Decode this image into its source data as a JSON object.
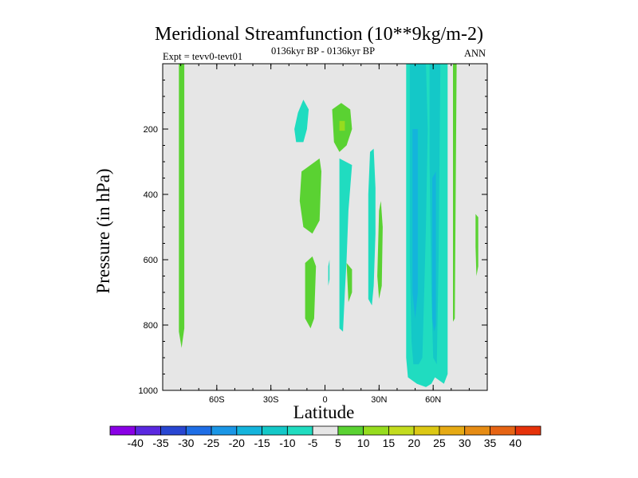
{
  "title": "Meridional Streamfunction (10**9kg/m-2)",
  "subtitle": "0136kyr BP - 0136kyr BP",
  "left_string": "Expt = tevv0-tevt01",
  "right_string": "ANN",
  "colors": {
    "background_field": "#e6e6e6",
    "palette": [
      "#8a00e6",
      "#5a28e0",
      "#2846d2",
      "#1e6ee6",
      "#1a96e6",
      "#14b4dc",
      "#14c8c8",
      "#20dcc0",
      "#e6e6e6",
      "#5ad232",
      "#96dc1e",
      "#c3dc1e",
      "#dcc814",
      "#e6aa14",
      "#e68c14",
      "#e66414",
      "#e6320a"
    ]
  },
  "chart_data": {
    "type": "heatmap",
    "title": "Meridional Streamfunction (10**9kg/m-2)",
    "xlabel": "Latitude",
    "ylabel": "Pressure (in hPa)",
    "xlim": [
      -90,
      90
    ],
    "ylim": [
      1000,
      0
    ],
    "x_ticks": [
      -60,
      -30,
      0,
      30,
      60
    ],
    "x_tick_labels": [
      "60S",
      "30S",
      "0",
      "30N",
      "60N"
    ],
    "y_ticks": [
      200,
      400,
      600,
      800,
      1000
    ],
    "y_tick_labels": [
      "200",
      "400",
      "600",
      "800",
      "1000"
    ],
    "colorbar": {
      "levels": [
        -40,
        -35,
        -30,
        -25,
        -20,
        -15,
        -10,
        -5,
        5,
        10,
        15,
        20,
        25,
        30,
        35,
        40
      ],
      "labels": [
        "-40",
        "-35",
        "-30",
        "-25",
        "-20",
        "-15",
        "-10",
        "-5",
        "5",
        "10",
        "15",
        "20",
        "25",
        "30",
        "35",
        "40"
      ]
    },
    "regions": [
      {
        "name": "southern-positive-band",
        "level": 5,
        "points": [
          [
            -81,
            0
          ],
          [
            -78,
            0
          ],
          [
            -78,
            810
          ],
          [
            -79.5,
            870
          ],
          [
            -81,
            820
          ]
        ]
      },
      {
        "name": "trop-s-upper",
        "level": -5,
        "points": [
          [
            -17,
            200
          ],
          [
            -15,
            150
          ],
          [
            -12,
            110
          ],
          [
            -9,
            140
          ],
          [
            -10,
            200
          ],
          [
            -12,
            240
          ],
          [
            -16,
            240
          ]
        ]
      },
      {
        "name": "trop-s-middle",
        "level": 5,
        "points": [
          [
            -13,
            330
          ],
          [
            -8,
            310
          ],
          [
            -3,
            290
          ],
          [
            -2,
            330
          ],
          [
            -3,
            480
          ],
          [
            -7,
            520
          ],
          [
            -12,
            500
          ],
          [
            -14,
            420
          ]
        ]
      },
      {
        "name": "trop-s-lower",
        "level": 5,
        "points": [
          [
            -11,
            610
          ],
          [
            -7,
            590
          ],
          [
            -5,
            620
          ],
          [
            -6,
            780
          ],
          [
            -8,
            810
          ],
          [
            -11,
            780
          ]
        ]
      },
      {
        "name": "trop-n-upper",
        "level": 5,
        "points": [
          [
            4,
            140
          ],
          [
            9,
            120
          ],
          [
            14,
            140
          ],
          [
            15,
            200
          ],
          [
            12,
            250
          ],
          [
            8,
            270
          ],
          [
            5,
            240
          ]
        ]
      },
      {
        "name": "trop-n-upper-core",
        "level": 10,
        "points": [
          [
            8,
            175
          ],
          [
            11,
            175
          ],
          [
            11,
            205
          ],
          [
            8,
            205
          ]
        ]
      },
      {
        "name": "trop-n-column",
        "level": -5,
        "points": [
          [
            8,
            290
          ],
          [
            15,
            310
          ],
          [
            13,
            450
          ],
          [
            12,
            600
          ],
          [
            11,
            700
          ],
          [
            10,
            820
          ],
          [
            8,
            810
          ],
          [
            8,
            620
          ],
          [
            8,
            460
          ]
        ]
      },
      {
        "name": "equator-sliver",
        "level": -5,
        "points": [
          [
            1.8,
            620
          ],
          [
            2.5,
            600
          ],
          [
            2.5,
            660
          ],
          [
            1.8,
            680
          ]
        ]
      },
      {
        "name": "trop-n-lower-green",
        "level": 5,
        "points": [
          [
            12,
            610
          ],
          [
            15,
            630
          ],
          [
            15,
            700
          ],
          [
            13,
            730
          ]
        ]
      },
      {
        "name": "n-subtrop-cyan",
        "level": -5,
        "points": [
          [
            25,
            270
          ],
          [
            27,
            260
          ],
          [
            28,
            380
          ],
          [
            28,
            520
          ],
          [
            27,
            680
          ],
          [
            26,
            740
          ],
          [
            24,
            720
          ],
          [
            24,
            560
          ],
          [
            24,
            400
          ]
        ]
      },
      {
        "name": "n-subtrop-green",
        "level": 5,
        "points": [
          [
            30,
            450
          ],
          [
            31,
            420
          ],
          [
            32,
            500
          ],
          [
            31.5,
            680
          ],
          [
            30,
            720
          ],
          [
            29,
            650
          ]
        ]
      },
      {
        "name": "n-midlat-outer",
        "level": -5,
        "points": [
          [
            45,
            0
          ],
          [
            68,
            0
          ],
          [
            68,
            950
          ],
          [
            66,
            980
          ],
          [
            61,
            960
          ],
          [
            59,
            980
          ],
          [
            56,
            990
          ],
          [
            51,
            980
          ],
          [
            46,
            960
          ],
          [
            45,
            900
          ]
        ]
      },
      {
        "name": "n-midlat-inner",
        "level": -10,
        "points": [
          [
            47,
            0
          ],
          [
            56,
            0
          ],
          [
            57,
            200
          ],
          [
            56,
            500
          ],
          [
            55,
            700
          ],
          [
            54,
            900
          ],
          [
            52,
            920
          ],
          [
            49,
            920
          ],
          [
            48,
            850
          ],
          [
            47,
            600
          ],
          [
            47,
            300
          ]
        ]
      },
      {
        "name": "n-midlat-inner2",
        "level": -10,
        "points": [
          [
            58,
            0
          ],
          [
            64,
            0
          ],
          [
            63,
            600
          ],
          [
            62,
            920
          ],
          [
            60,
            900
          ],
          [
            59,
            700
          ],
          [
            58,
            300
          ]
        ]
      },
      {
        "name": "n-midlat-core",
        "level": -15,
        "points": [
          [
            48.5,
            200
          ],
          [
            51.5,
            200
          ],
          [
            51.5,
            700
          ],
          [
            50,
            780
          ],
          [
            48.5,
            700
          ]
        ]
      },
      {
        "name": "n-midlat-core2",
        "level": -15,
        "points": [
          [
            59.5,
            350
          ],
          [
            61.5,
            330
          ],
          [
            61.5,
            800
          ],
          [
            60.5,
            820
          ],
          [
            59.5,
            780
          ]
        ]
      },
      {
        "name": "n-high-green",
        "level": 5,
        "points": [
          [
            71,
            0
          ],
          [
            73,
            0
          ],
          [
            72.5,
            400
          ],
          [
            72,
            780
          ],
          [
            71,
            790
          ],
          [
            71,
            400
          ]
        ]
      },
      {
        "name": "n-polar-green",
        "level": 5,
        "points": [
          [
            83.5,
            460
          ],
          [
            85,
            470
          ],
          [
            85,
            620
          ],
          [
            84,
            650
          ],
          [
            83.5,
            560
          ]
        ]
      }
    ]
  }
}
